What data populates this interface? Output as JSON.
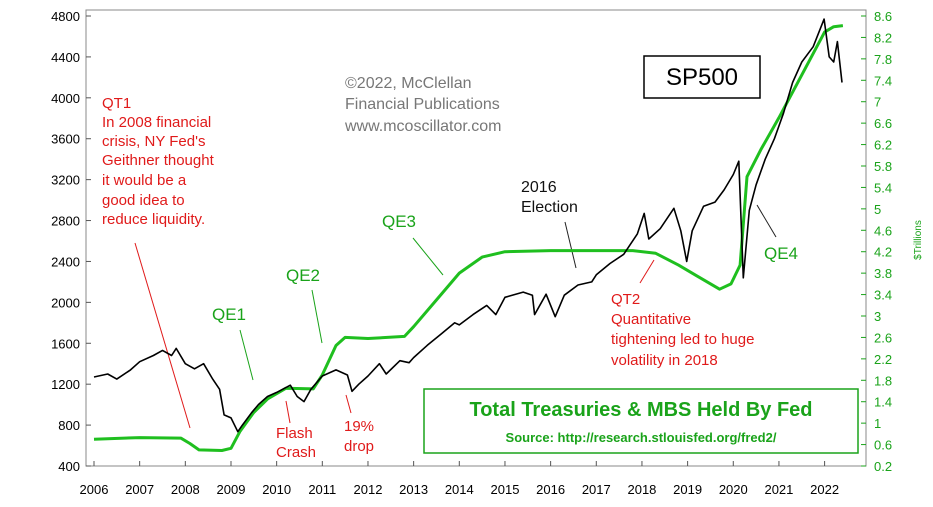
{
  "chart_data": {
    "type": "line",
    "x_ticks": [
      "2006",
      "2007",
      "2008",
      "2009",
      "2010",
      "2011",
      "2012",
      "2013",
      "2014",
      "2015",
      "2016",
      "2017",
      "2018",
      "2019",
      "2020",
      "2021",
      "2022"
    ],
    "left_axis": {
      "ticks": [
        400,
        800,
        1200,
        1600,
        2000,
        2400,
        2800,
        3200,
        3600,
        4000,
        4400,
        4800
      ],
      "ylim": [
        400,
        4800
      ]
    },
    "right_axis": {
      "label": "$Trillions",
      "ticks": [
        "0.2",
        "0.6",
        "1",
        "1.4",
        "1.8",
        "2.2",
        "2.6",
        "3",
        "3.4",
        "3.8",
        "4.2",
        "4.6",
        "5",
        "5.4",
        "5.8",
        "6.2",
        "6.6",
        "7",
        "7.4",
        "7.8",
        "8.2",
        "8.6"
      ],
      "ylim": [
        0.2,
        8.6
      ]
    },
    "series": [
      {
        "name": "SP500",
        "axis": "left",
        "color": "#000000",
        "points": [
          [
            2006.0,
            1270
          ],
          [
            2006.3,
            1300
          ],
          [
            2006.5,
            1250
          ],
          [
            2006.8,
            1340
          ],
          [
            2007.0,
            1420
          ],
          [
            2007.3,
            1480
          ],
          [
            2007.5,
            1530
          ],
          [
            2007.7,
            1480
          ],
          [
            2007.8,
            1550
          ],
          [
            2008.0,
            1400
          ],
          [
            2008.2,
            1350
          ],
          [
            2008.4,
            1400
          ],
          [
            2008.6,
            1250
          ],
          [
            2008.75,
            1150
          ],
          [
            2008.85,
            900
          ],
          [
            2009.0,
            870
          ],
          [
            2009.15,
            735
          ],
          [
            2009.25,
            800
          ],
          [
            2009.45,
            920
          ],
          [
            2009.6,
            1000
          ],
          [
            2009.8,
            1080
          ],
          [
            2010.0,
            1120
          ],
          [
            2010.3,
            1190
          ],
          [
            2010.45,
            1080
          ],
          [
            2010.6,
            1030
          ],
          [
            2010.75,
            1150
          ],
          [
            2011.0,
            1280
          ],
          [
            2011.3,
            1340
          ],
          [
            2011.55,
            1290
          ],
          [
            2011.65,
            1130
          ],
          [
            2011.8,
            1200
          ],
          [
            2012.0,
            1280
          ],
          [
            2012.25,
            1400
          ],
          [
            2012.4,
            1300
          ],
          [
            2012.7,
            1430
          ],
          [
            2012.9,
            1410
          ],
          [
            2013.0,
            1460
          ],
          [
            2013.3,
            1580
          ],
          [
            2013.6,
            1690
          ],
          [
            2013.9,
            1800
          ],
          [
            2014.0,
            1780
          ],
          [
            2014.3,
            1880
          ],
          [
            2014.6,
            1970
          ],
          [
            2014.8,
            1880
          ],
          [
            2015.0,
            2050
          ],
          [
            2015.4,
            2100
          ],
          [
            2015.6,
            2070
          ],
          [
            2015.65,
            1880
          ],
          [
            2015.9,
            2080
          ],
          [
            2016.1,
            1860
          ],
          [
            2016.3,
            2070
          ],
          [
            2016.6,
            2170
          ],
          [
            2016.9,
            2200
          ],
          [
            2017.0,
            2270
          ],
          [
            2017.3,
            2380
          ],
          [
            2017.6,
            2470
          ],
          [
            2017.9,
            2670
          ],
          [
            2018.05,
            2870
          ],
          [
            2018.15,
            2620
          ],
          [
            2018.4,
            2720
          ],
          [
            2018.7,
            2920
          ],
          [
            2018.85,
            2700
          ],
          [
            2018.98,
            2400
          ],
          [
            2019.1,
            2700
          ],
          [
            2019.35,
            2940
          ],
          [
            2019.6,
            2980
          ],
          [
            2019.8,
            3100
          ],
          [
            2020.0,
            3250
          ],
          [
            2020.12,
            3380
          ],
          [
            2020.22,
            2240
          ],
          [
            2020.35,
            2900
          ],
          [
            2020.5,
            3150
          ],
          [
            2020.7,
            3400
          ],
          [
            2020.9,
            3600
          ],
          [
            2021.1,
            3850
          ],
          [
            2021.3,
            4150
          ],
          [
            2021.5,
            4350
          ],
          [
            2021.75,
            4500
          ],
          [
            2021.99,
            4770
          ],
          [
            2022.1,
            4400
          ],
          [
            2022.2,
            4350
          ],
          [
            2022.28,
            4550
          ],
          [
            2022.38,
            4150
          ]
        ]
      },
      {
        "name": "Total Treasuries & MBS Held By Fed",
        "axis": "right",
        "color": "#1fbf1f",
        "points": [
          [
            2006.0,
            0.7
          ],
          [
            2007.0,
            0.73
          ],
          [
            2007.9,
            0.72
          ],
          [
            2008.1,
            0.62
          ],
          [
            2008.3,
            0.5
          ],
          [
            2008.8,
            0.49
          ],
          [
            2009.0,
            0.53
          ],
          [
            2009.2,
            0.85
          ],
          [
            2009.5,
            1.2
          ],
          [
            2009.8,
            1.45
          ],
          [
            2010.2,
            1.65
          ],
          [
            2010.8,
            1.64
          ],
          [
            2011.0,
            1.9
          ],
          [
            2011.3,
            2.45
          ],
          [
            2011.5,
            2.6
          ],
          [
            2012.0,
            2.58
          ],
          [
            2012.8,
            2.62
          ],
          [
            2013.0,
            2.8
          ],
          [
            2013.5,
            3.3
          ],
          [
            2014.0,
            3.8
          ],
          [
            2014.5,
            4.1
          ],
          [
            2015.0,
            4.2
          ],
          [
            2016.0,
            4.22
          ],
          [
            2017.0,
            4.22
          ],
          [
            2017.8,
            4.22
          ],
          [
            2018.3,
            4.17
          ],
          [
            2018.8,
            3.95
          ],
          [
            2019.2,
            3.75
          ],
          [
            2019.7,
            3.5
          ],
          [
            2019.95,
            3.6
          ],
          [
            2020.15,
            3.95
          ],
          [
            2020.3,
            5.6
          ],
          [
            2020.6,
            6.1
          ],
          [
            2021.0,
            6.7
          ],
          [
            2021.5,
            7.5
          ],
          [
            2022.0,
            8.3
          ],
          [
            2022.2,
            8.4
          ],
          [
            2022.4,
            8.42
          ]
        ]
      }
    ],
    "legend": {
      "title": "Total Treasuries & MBS Held By Fed",
      "source": "Source: http://research.stlouisfed.org/fred2/"
    },
    "sp500_label": "SP500",
    "copyright": [
      "©2022, McClellan",
      "Financial Publications",
      "www.mcoscillator.com"
    ],
    "annotations": {
      "qt1": [
        "QT1",
        "In 2008 financial",
        "crisis, NY Fed's",
        "Geithner thought",
        "it would be a",
        "good idea to",
        "reduce liquidity."
      ],
      "qe1": "QE1",
      "qe2": "QE2",
      "qe3": "QE3",
      "qe4": "QE4",
      "election": [
        "2016",
        "Election"
      ],
      "flash_crash": [
        "Flash",
        "Crash"
      ],
      "drop": [
        "19%",
        "drop"
      ],
      "qt2": [
        "QT2",
        "Quantitative",
        "tightening led to huge",
        "volatility in 2018"
      ]
    }
  }
}
